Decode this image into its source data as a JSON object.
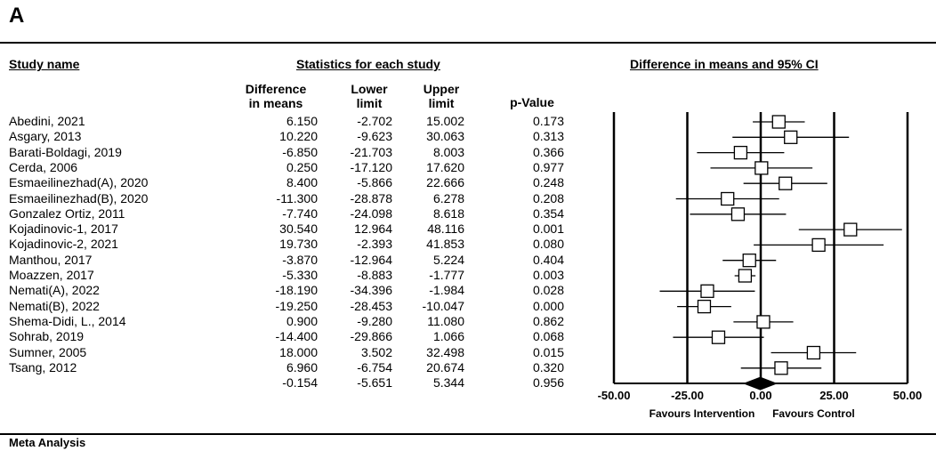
{
  "panel_label": "A",
  "headers": {
    "study_name": "Study name",
    "statistics": "Statistics for each study",
    "ci": "Difference in means and 95% CI",
    "col_diff": [
      "Difference",
      "in means"
    ],
    "col_lower": [
      "Lower",
      "limit"
    ],
    "col_upper": [
      "Upper",
      "limit"
    ],
    "col_p": "p-Value"
  },
  "footer": "Meta Analysis",
  "chart_data": {
    "type": "forest",
    "xlim": [
      -50,
      50
    ],
    "xticks": [
      "-50.00",
      "-25.00",
      "0.00",
      "25.00",
      "50.00"
    ],
    "xtick_values": [
      -50,
      -25,
      0,
      25,
      50
    ],
    "xlabel_left": "Favours Intervention",
    "xlabel_right": "Favours Control",
    "studies": [
      {
        "name": "Abedini, 2021",
        "diff": "6.150",
        "lower": "-2.702",
        "upper": "15.002",
        "p": "0.173",
        "d": 6.15,
        "lo": -2.702,
        "hi": 15.002
      },
      {
        "name": "Asgary, 2013",
        "diff": "10.220",
        "lower": "-9.623",
        "upper": "30.063",
        "p": "0.313",
        "d": 10.22,
        "lo": -9.623,
        "hi": 30.063
      },
      {
        "name": "Barati-Boldagi, 2019",
        "diff": "-6.850",
        "lower": "-21.703",
        "upper": "8.003",
        "p": "0.366",
        "d": -6.85,
        "lo": -21.703,
        "hi": 8.003
      },
      {
        "name": "Cerda, 2006",
        "diff": "0.250",
        "lower": "-17.120",
        "upper": "17.620",
        "p": "0.977",
        "d": 0.25,
        "lo": -17.12,
        "hi": 17.62
      },
      {
        "name": "Esmaeilinezhad(A), 2020",
        "diff": "8.400",
        "lower": "-5.866",
        "upper": "22.666",
        "p": "0.248",
        "d": 8.4,
        "lo": -5.866,
        "hi": 22.666
      },
      {
        "name": "Esmaeilinezhad(B), 2020",
        "diff": "-11.300",
        "lower": "-28.878",
        "upper": "6.278",
        "p": "0.208",
        "d": -11.3,
        "lo": -28.878,
        "hi": 6.278
      },
      {
        "name": "Gonzalez Ortiz, 2011",
        "diff": "-7.740",
        "lower": "-24.098",
        "upper": "8.618",
        "p": "0.354",
        "d": -7.74,
        "lo": -24.098,
        "hi": 8.618
      },
      {
        "name": "Kojadinovic-1, 2017",
        "diff": "30.540",
        "lower": "12.964",
        "upper": "48.116",
        "p": "0.001",
        "d": 30.54,
        "lo": 12.964,
        "hi": 48.116
      },
      {
        "name": "Kojadinovic-2, 2021",
        "diff": "19.730",
        "lower": "-2.393",
        "upper": "41.853",
        "p": "0.080",
        "d": 19.73,
        "lo": -2.393,
        "hi": 41.853
      },
      {
        "name": "Manthou, 2017",
        "diff": "-3.870",
        "lower": "-12.964",
        "upper": "5.224",
        "p": "0.404",
        "d": -3.87,
        "lo": -12.964,
        "hi": 5.224
      },
      {
        "name": "Moazzen, 2017",
        "diff": "-5.330",
        "lower": "-8.883",
        "upper": "-1.777",
        "p": "0.003",
        "d": -5.33,
        "lo": -8.883,
        "hi": -1.777
      },
      {
        "name": "Nemati(A), 2022",
        "diff": "-18.190",
        "lower": "-34.396",
        "upper": "-1.984",
        "p": "0.028",
        "d": -18.19,
        "lo": -34.396,
        "hi": -1.984
      },
      {
        "name": "Nemati(B), 2022",
        "diff": "-19.250",
        "lower": "-28.453",
        "upper": "-10.047",
        "p": "0.000",
        "d": -19.25,
        "lo": -28.453,
        "hi": -10.047
      },
      {
        "name": "Shema-Didi, L., 2014",
        "diff": "0.900",
        "lower": "-9.280",
        "upper": "11.080",
        "p": "0.862",
        "d": 0.9,
        "lo": -9.28,
        "hi": 11.08
      },
      {
        "name": "Sohrab, 2019",
        "diff": "-14.400",
        "lower": "-29.866",
        "upper": "1.066",
        "p": "0.068",
        "d": -14.4,
        "lo": -29.866,
        "hi": 1.066
      },
      {
        "name": "Sumner, 2005",
        "diff": "18.000",
        "lower": "3.502",
        "upper": "32.498",
        "p": "0.015",
        "d": 18.0,
        "lo": 3.502,
        "hi": 32.498
      },
      {
        "name": "Tsang, 2012",
        "diff": "6.960",
        "lower": "-6.754",
        "upper": "20.674",
        "p": "0.320",
        "d": 6.96,
        "lo": -6.754,
        "hi": 20.674
      }
    ],
    "pooled": {
      "name": "",
      "diff": "-0.154",
      "lower": "-5.651",
      "upper": "5.344",
      "p": "0.956",
      "d": -0.154,
      "lo": -5.651,
      "hi": 5.344
    }
  }
}
